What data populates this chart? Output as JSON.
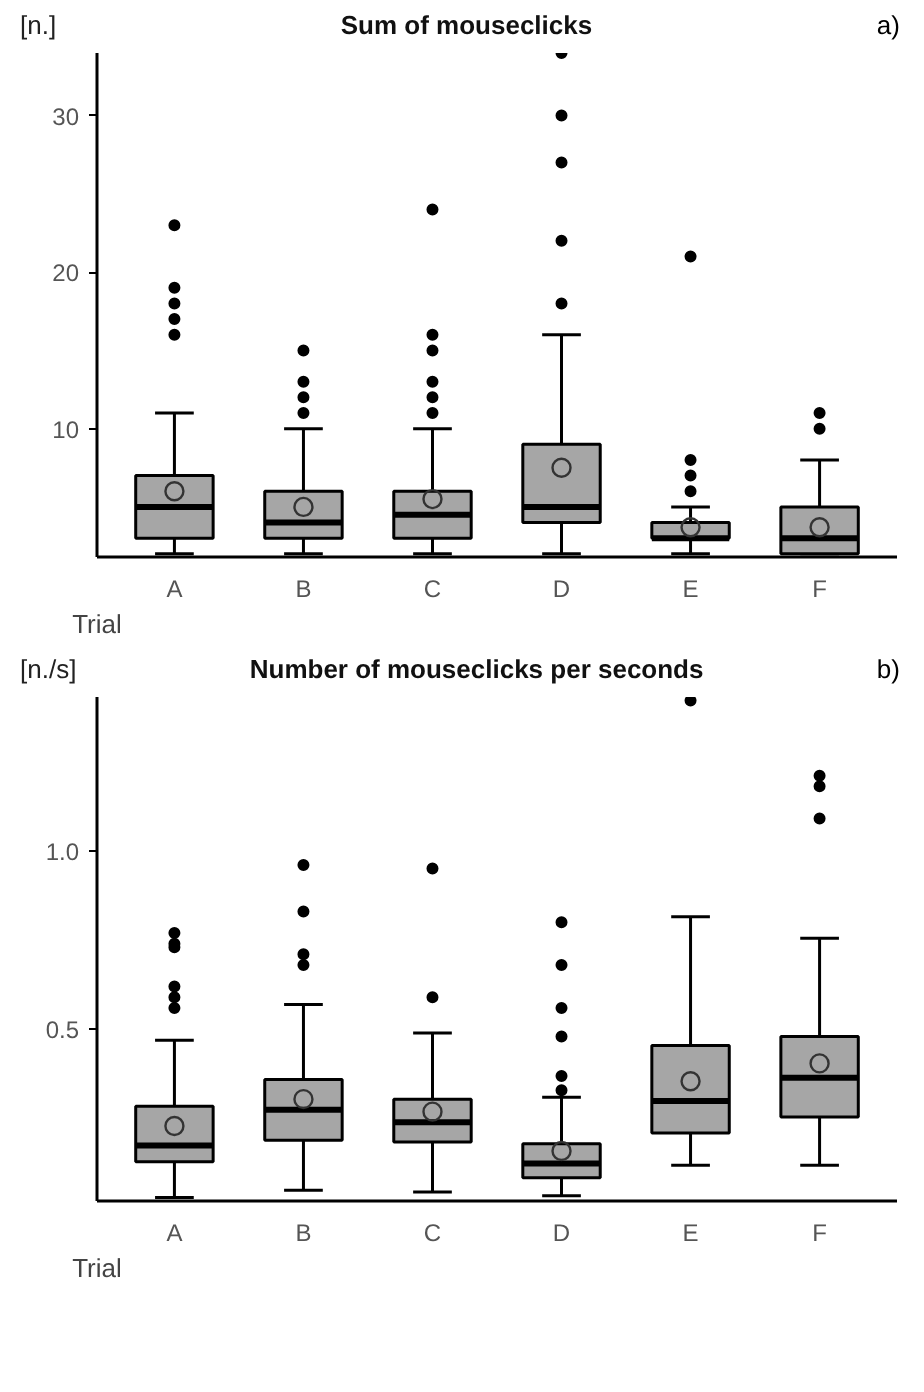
{
  "chart_data": [
    {
      "type": "box",
      "title": "Sum of mouseclicks",
      "ylabel": "[n.]",
      "xlabel": "Trial",
      "annotations": [
        "a)"
      ],
      "categories": [
        "A",
        "B",
        "C",
        "D",
        "E",
        "F"
      ],
      "ylim": [
        1.8,
        34
      ],
      "yticks": [
        10,
        20,
        30
      ],
      "grid": false,
      "series": [
        {
          "color": "#a6a6a6",
          "boxes": [
            {
              "low": 2,
              "q1": 3,
              "median": 5,
              "q3": 7,
              "high": 11,
              "mean": 6,
              "outliers": [
                16,
                17,
                18,
                19,
                23
              ]
            },
            {
              "low": 2,
              "q1": 3,
              "median": 4,
              "q3": 6,
              "high": 10,
              "mean": 5,
              "outliers": [
                11,
                12,
                13,
                15
              ]
            },
            {
              "low": 2,
              "q1": 3,
              "median": 4.5,
              "q3": 6,
              "high": 10,
              "mean": 5.5,
              "outliers": [
                11,
                12,
                13,
                15,
                16,
                24
              ]
            },
            {
              "low": 2,
              "q1": 4,
              "median": 5,
              "q3": 9,
              "high": 16,
              "mean": 7.5,
              "outliers": [
                18,
                22,
                27,
                30,
                34
              ]
            },
            {
              "low": 2,
              "q1": 3,
              "median": 3,
              "q3": 4,
              "high": 5,
              "mean": 3.7,
              "outliers": [
                6,
                7,
                8,
                21
              ]
            },
            {
              "low": 2,
              "q1": 2,
              "median": 3,
              "q3": 5,
              "high": 8,
              "mean": 3.7,
              "outliers": [
                10,
                11
              ]
            }
          ]
        }
      ]
    },
    {
      "type": "box",
      "title": "Number of mouseclicks per seconds",
      "ylabel": "[n./s]",
      "xlabel": "Trial",
      "annotations": [
        "b)"
      ],
      "categories": [
        "A",
        "B",
        "C",
        "D",
        "E",
        "F"
      ],
      "ylim": [
        0.02,
        1.43
      ],
      "yticks": [
        0.5,
        {
          "value": 1.0,
          "label": "1.0"
        }
      ],
      "grid": false,
      "series": [
        {
          "color": "#a6a6a6",
          "boxes": [
            {
              "low": 0.03,
              "q1": 0.13,
              "median": 0.175,
              "q3": 0.285,
              "high": 0.47,
              "mean": 0.23,
              "outliers": [
                0.56,
                0.59,
                0.62,
                0.73,
                0.74,
                0.77
              ]
            },
            {
              "low": 0.05,
              "q1": 0.19,
              "median": 0.275,
              "q3": 0.36,
              "high": 0.57,
              "mean": 0.305,
              "outliers": [
                0.68,
                0.71,
                0.83,
                0.96
              ]
            },
            {
              "low": 0.045,
              "q1": 0.185,
              "median": 0.24,
              "q3": 0.305,
              "high": 0.49,
              "mean": 0.27,
              "outliers": [
                0.59,
                0.95
              ]
            },
            {
              "low": 0.035,
              "q1": 0.085,
              "median": 0.125,
              "q3": 0.18,
              "high": 0.31,
              "mean": 0.16,
              "outliers": [
                0.33,
                0.37,
                0.48,
                0.56,
                0.68,
                0.8
              ]
            },
            {
              "low": 0.12,
              "q1": 0.21,
              "median": 0.3,
              "q3": 0.455,
              "high": 0.815,
              "mean": 0.355,
              "outliers": [
                1.42
              ]
            },
            {
              "low": 0.12,
              "q1": 0.255,
              "median": 0.365,
              "q3": 0.48,
              "high": 0.755,
              "mean": 0.405,
              "outliers": [
                1.09,
                1.18,
                1.21
              ]
            }
          ]
        }
      ]
    }
  ]
}
